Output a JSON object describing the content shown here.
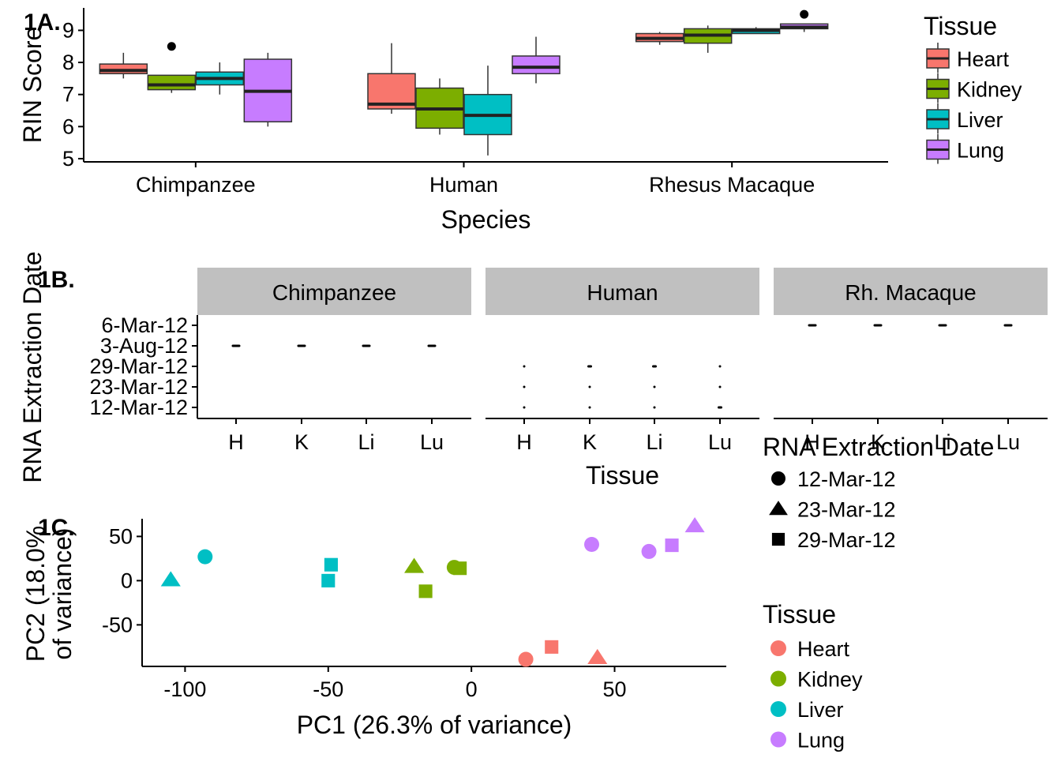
{
  "chart_data": [
    {
      "panel_label": "1A.",
      "type": "box",
      "xlabel": "Species",
      "ylabel": "RIN Score",
      "categories": [
        "Chimpanzee",
        "Human",
        "Rhesus Macaque"
      ],
      "yticks": [
        5,
        6,
        7,
        8,
        9
      ],
      "ylim": [
        4.9,
        9.7
      ],
      "legend": {
        "title": "Tissue",
        "placement": "right",
        "entries": [
          "Heart",
          "Kidney",
          "Liver",
          "Lung"
        ]
      },
      "colors": {
        "Heart": "#F8766D",
        "Kidney": "#7CAE00",
        "Liver": "#00BFC4",
        "Lung": "#C77CFF"
      },
      "boxes": [
        {
          "species": "Chimpanzee",
          "tissue": "Heart",
          "min": 7.5,
          "q1": 7.65,
          "median": 7.75,
          "q3": 7.95,
          "max": 8.3,
          "outliers": []
        },
        {
          "species": "Chimpanzee",
          "tissue": "Kidney",
          "min": 7.05,
          "q1": 7.15,
          "median": 7.3,
          "q3": 7.6,
          "max": 7.6,
          "outliers": [
            8.5
          ]
        },
        {
          "species": "Chimpanzee",
          "tissue": "Liver",
          "min": 7.0,
          "q1": 7.3,
          "median": 7.5,
          "q3": 7.7,
          "max": 8.0,
          "outliers": []
        },
        {
          "species": "Chimpanzee",
          "tissue": "Lung",
          "min": 6.0,
          "q1": 6.15,
          "median": 7.1,
          "q3": 8.1,
          "max": 8.3,
          "outliers": []
        },
        {
          "species": "Human",
          "tissue": "Heart",
          "min": 6.4,
          "q1": 6.55,
          "median": 6.7,
          "q3": 7.65,
          "max": 8.6,
          "outliers": []
        },
        {
          "species": "Human",
          "tissue": "Kidney",
          "min": 5.75,
          "q1": 5.95,
          "median": 6.55,
          "q3": 7.2,
          "max": 7.5,
          "outliers": []
        },
        {
          "species": "Human",
          "tissue": "Liver",
          "min": 5.1,
          "q1": 5.75,
          "median": 6.35,
          "q3": 7.0,
          "max": 7.9,
          "outliers": []
        },
        {
          "species": "Human",
          "tissue": "Lung",
          "min": 7.35,
          "q1": 7.65,
          "median": 7.85,
          "q3": 8.2,
          "max": 8.8,
          "outliers": []
        },
        {
          "species": "Rhesus Macaque",
          "tissue": "Heart",
          "min": 8.55,
          "q1": 8.65,
          "median": 8.75,
          "q3": 8.9,
          "max": 8.95,
          "outliers": []
        },
        {
          "species": "Rhesus Macaque",
          "tissue": "Kidney",
          "min": 8.3,
          "q1": 8.6,
          "median": 8.85,
          "q3": 9.05,
          "max": 9.15,
          "outliers": []
        },
        {
          "species": "Rhesus Macaque",
          "tissue": "Liver",
          "min": 8.9,
          "q1": 8.9,
          "median": 9.0,
          "q3": 9.05,
          "max": 9.1,
          "outliers": []
        },
        {
          "species": "Rhesus Macaque",
          "tissue": "Lung",
          "min": 8.95,
          "q1": 9.05,
          "median": 9.1,
          "q3": 9.2,
          "max": 9.2,
          "outliers": [
            9.5
          ]
        }
      ]
    },
    {
      "panel_label": "1B.",
      "type": "faceted_dot",
      "xlabel": "Tissue",
      "ylabel": "RNA Extraction Date",
      "facets": [
        "Chimpanzee",
        "Human",
        "Rh. Macaque"
      ],
      "x_categories": [
        "H",
        "K",
        "Li",
        "Lu"
      ],
      "y_categories": [
        "12-Mar-12",
        "23-Mar-12",
        "29-Mar-12",
        "3-Aug-12",
        "6-Mar-12"
      ],
      "points": [
        {
          "facet": 0,
          "x": "H",
          "y": "3-Aug-12",
          "n": 4
        },
        {
          "facet": 0,
          "x": "K",
          "y": "3-Aug-12",
          "n": 4
        },
        {
          "facet": 0,
          "x": "Li",
          "y": "3-Aug-12",
          "n": 4
        },
        {
          "facet": 0,
          "x": "Lu",
          "y": "3-Aug-12",
          "n": 4
        },
        {
          "facet": 1,
          "x": "H",
          "y": "29-Mar-12",
          "n": 1
        },
        {
          "facet": 1,
          "x": "H",
          "y": "23-Mar-12",
          "n": 1
        },
        {
          "facet": 1,
          "x": "H",
          "y": "12-Mar-12",
          "n": 1
        },
        {
          "facet": 1,
          "x": "K",
          "y": "29-Mar-12",
          "n": 2
        },
        {
          "facet": 1,
          "x": "K",
          "y": "23-Mar-12",
          "n": 1
        },
        {
          "facet": 1,
          "x": "K",
          "y": "12-Mar-12",
          "n": 1
        },
        {
          "facet": 1,
          "x": "Li",
          "y": "29-Mar-12",
          "n": 2
        },
        {
          "facet": 1,
          "x": "Li",
          "y": "23-Mar-12",
          "n": 1
        },
        {
          "facet": 1,
          "x": "Li",
          "y": "12-Mar-12",
          "n": 1
        },
        {
          "facet": 1,
          "x": "Lu",
          "y": "29-Mar-12",
          "n": 1
        },
        {
          "facet": 1,
          "x": "Lu",
          "y": "23-Mar-12",
          "n": 1
        },
        {
          "facet": 1,
          "x": "Lu",
          "y": "12-Mar-12",
          "n": 2
        },
        {
          "facet": 2,
          "x": "H",
          "y": "6-Mar-12",
          "n": 4
        },
        {
          "facet": 2,
          "x": "K",
          "y": "6-Mar-12",
          "n": 4
        },
        {
          "facet": 2,
          "x": "Li",
          "y": "6-Mar-12",
          "n": 4
        },
        {
          "facet": 2,
          "x": "Lu",
          "y": "6-Mar-12",
          "n": 4
        }
      ]
    },
    {
      "panel_label": "1C.",
      "type": "scatter",
      "xlabel": "PC1 (26.3% of variance)",
      "ylabel_lines": [
        "PC2 (18.0%",
        "of variance)"
      ],
      "xticks": [
        -100,
        -50,
        0,
        50
      ],
      "yticks": [
        -50,
        0,
        50
      ],
      "xlim": [
        -115,
        89
      ],
      "ylim": [
        -97,
        70
      ],
      "legend_shape": {
        "title": "RNA Extraction Date",
        "entries": [
          "12-Mar-12",
          "23-Mar-12",
          "29-Mar-12"
        ],
        "shapes": [
          "circle",
          "triangle",
          "square"
        ]
      },
      "legend_color": {
        "title": "Tissue",
        "entries": [
          "Heart",
          "Kidney",
          "Liver",
          "Lung"
        ]
      },
      "points": [
        {
          "x": -105,
          "y": 1,
          "tissue": "Liver",
          "shape": "triangle"
        },
        {
          "x": -93,
          "y": 27,
          "tissue": "Liver",
          "shape": "circle"
        },
        {
          "x": -50,
          "y": 0,
          "tissue": "Liver",
          "shape": "square"
        },
        {
          "x": -49,
          "y": 18,
          "tissue": "Liver",
          "shape": "square"
        },
        {
          "x": -20,
          "y": 16,
          "tissue": "Kidney",
          "shape": "triangle"
        },
        {
          "x": -16,
          "y": -12,
          "tissue": "Kidney",
          "shape": "square"
        },
        {
          "x": -6,
          "y": 15,
          "tissue": "Kidney",
          "shape": "circle"
        },
        {
          "x": -4,
          "y": 14,
          "tissue": "Kidney",
          "shape": "square"
        },
        {
          "x": 19,
          "y": -89,
          "tissue": "Heart",
          "shape": "circle"
        },
        {
          "x": 28,
          "y": -75,
          "tissue": "Heart",
          "shape": "square"
        },
        {
          "x": 44,
          "y": -87,
          "tissue": "Heart",
          "shape": "triangle"
        },
        {
          "x": 42,
          "y": 41,
          "tissue": "Lung",
          "shape": "circle"
        },
        {
          "x": 62,
          "y": 33,
          "tissue": "Lung",
          "shape": "circle"
        },
        {
          "x": 70,
          "y": 40,
          "tissue": "Lung",
          "shape": "square"
        },
        {
          "x": 78,
          "y": 62,
          "tissue": "Lung",
          "shape": "triangle"
        }
      ]
    }
  ]
}
